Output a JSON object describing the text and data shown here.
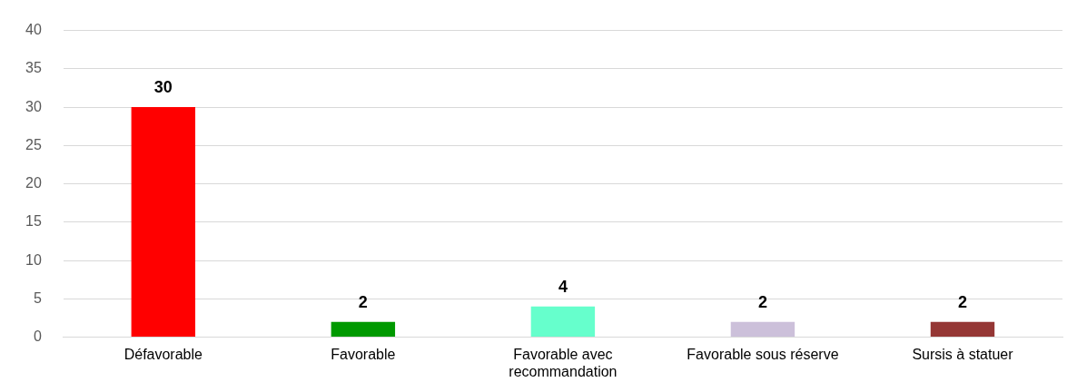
{
  "chart_data": {
    "type": "bar",
    "categories": [
      "Défavorable",
      "Favorable",
      "Favorable avec recommandation",
      "Favorable sous réserve",
      "Sursis à statuer"
    ],
    "values": [
      30,
      2,
      4,
      2,
      2
    ],
    "colors": [
      "#ff0000",
      "#009900",
      "#66ffcc",
      "#ccc0da",
      "#953735"
    ],
    "ylim": [
      0,
      40
    ],
    "yticks": [
      0,
      5,
      10,
      15,
      20,
      25,
      30,
      35,
      40
    ],
    "grid": "y",
    "legend": false,
    "data_labels": true
  }
}
